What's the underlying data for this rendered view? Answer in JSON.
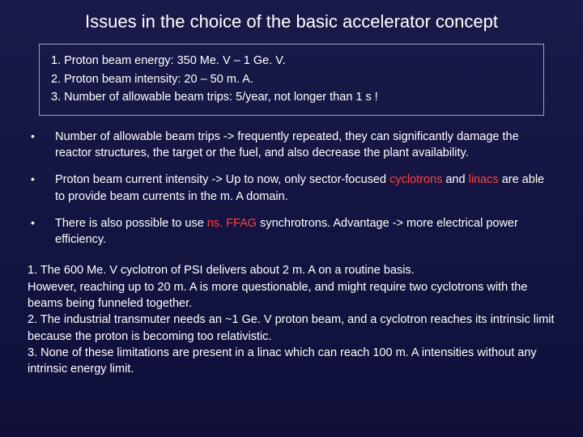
{
  "title": "Issues in the choice of the basic accelerator concept",
  "box": {
    "item1": "1. Proton beam energy: 350 Me. V – 1 Ge. V.",
    "item2": "2. Proton beam intensity: 20 – 50 m. A.",
    "item3": "3. Number of allowable beam trips: 5/year, not longer than 1 s !"
  },
  "bullets": {
    "b1": "Number of allowable beam trips -> frequently repeated, they can significantly damage the reactor structures, the target or the fuel, and also decrease the plant availability.",
    "b2_pre": "Proton beam current intensity -> Up to now, only sector-focused ",
    "b2_red1": "cyclotrons",
    "b2_mid": " and ",
    "b2_red2": "linacs",
    "b2_post": " are able to provide beam currents in the m. A domain.",
    "b3_pre": "There is also possible to use ",
    "b3_red": "ns. FFAG",
    "b3_post": " synchrotrons. Advantage -> more electrical power efficiency."
  },
  "footer": {
    "p1": "1. The 600 Me. V cyclotron of PSI delivers about 2 m. A on a routine basis.",
    "p2": "However, reaching up to 20 m. A is more questionable, and might require two cyclotrons with the beams being funneled together.",
    "p3": "2. The industrial transmuter needs an ~1 Ge. V proton beam, and a cyclotron reaches its intrinsic limit because the proton is becoming too relativistic.",
    "p4": "3. None of these limitations are present in a linac which can reach 100 m. A intensities without any intrinsic energy limit."
  },
  "colors": {
    "bg_top": "#1a1a4a",
    "bg_bottom": "#0f0f3a",
    "text": "#ffffff",
    "box_border": "#a0a0c0",
    "highlight": "#ff4040"
  },
  "fonts": {
    "title_size": 22,
    "body_size": 14.5
  }
}
